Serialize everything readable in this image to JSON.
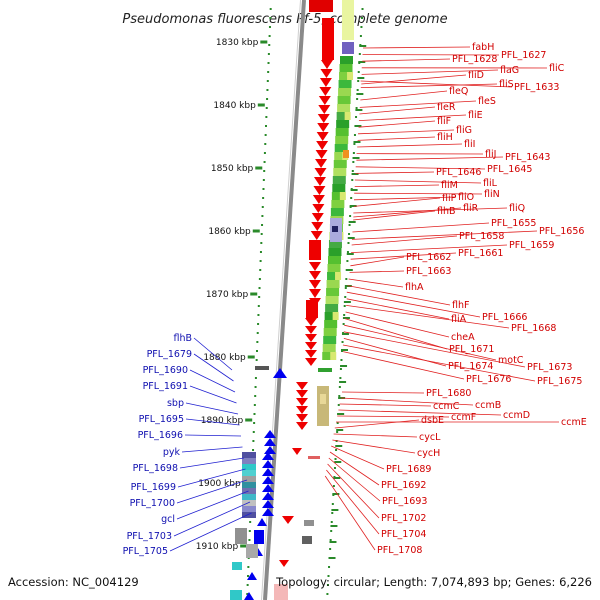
{
  "title": "Pseudomonas fluorescens Pf-5, complete genome",
  "footer": {
    "accession": "Accession: NC_004129",
    "summary": "Topology: circular; Length: 7,074,893 bp; Genes: 6,226"
  },
  "ticks": [
    "1830 kbp",
    "1840 kbp",
    "1850 kbp",
    "1860 kbp",
    "1870 kbp",
    "1880 kbp",
    "1890 kbp",
    "1900 kbp",
    "1910 kbp"
  ],
  "right_labels": [
    "fabH",
    "PFL_1627",
    "PFL_1628",
    "fliC",
    "flaG",
    "PFL_1633",
    "fliS",
    "fliD",
    "fleQ",
    "fleS",
    "fleR",
    "fliE",
    "fliF",
    "fliG",
    "fliH",
    "fliI",
    "fliJ",
    "PFL_1643",
    "PFL_1645",
    "PFL_1646",
    "fliL",
    "fliM",
    "fliN",
    "fliO",
    "fliP",
    "fliQ",
    "fliR",
    "flhB",
    "PFL_1655",
    "PFL_1656",
    "PFL_1658",
    "PFL_1659",
    "PFL_1661",
    "PFL_1662",
    "PFL_1663",
    "flhA",
    "flhF",
    "PFL_1666",
    "fliA",
    "PFL_1668",
    "cheA",
    "PFL_1671",
    "motC",
    "PFL_1673",
    "PFL_1674",
    "PFL_1675",
    "PFL_1676",
    "PFL_1680",
    "ccmB",
    "ccmC",
    "ccmD",
    "ccmF",
    "ccmE",
    "dsbE",
    "cycL",
    "cycH",
    "PFL_1689",
    "PFL_1692",
    "PFL_1693",
    "PFL_1702",
    "PFL_1704",
    "PFL_1708"
  ],
  "left_labels": [
    "flhB",
    "PFL_1679",
    "PFL_1690",
    "PFL_1691",
    "sbp",
    "PFL_1695",
    "PFL_1696",
    "pyk",
    "PFL_1698",
    "PFL_1699",
    "PFL_1700",
    "gcl",
    "PFL_1703",
    "PFL_1705"
  ],
  "colors": {
    "forward": "#ee0000",
    "reverse": "#0000ee",
    "backbone": "#8a8a8a",
    "dots": "#2a8a2a"
  }
}
